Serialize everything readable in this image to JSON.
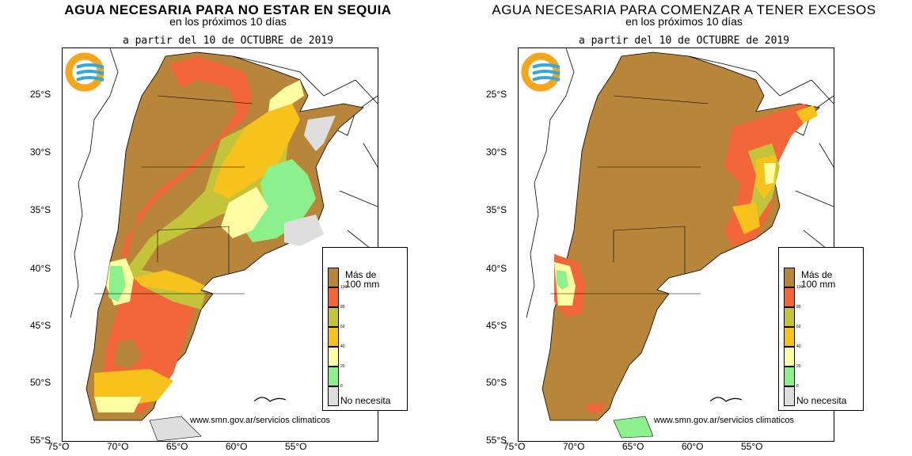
{
  "panels": [
    {
      "title": "AGUA NECESARIA PARA NO ESTAR EN SEQUIA",
      "subtitle": "en los próximos 10 días",
      "date": "a partir del 10 de OCTUBRE de 2019"
    },
    {
      "title": "AGUA NECESARIA PARA COMENZAR A TENER EXCESOS",
      "subtitle": "en los próximos 10 días",
      "date": "a partir del 10 de OCTUBRE de 2019"
    }
  ],
  "axis": {
    "lat_labels": [
      "25°S",
      "30°S",
      "35°S",
      "40°S",
      "45°S",
      "50°S",
      "55°S"
    ],
    "lon_labels": [
      "75°O",
      "70°O",
      "65°O",
      "60°O",
      "55°O"
    ]
  },
  "legend": {
    "top_label_line1": "Más de",
    "top_label_line2": "100 mm",
    "bottom_label": "No necesita",
    "ticks": [
      "100",
      "80",
      "60",
      "40",
      "20",
      "0"
    ],
    "colors": {
      "more_than_100": "#b8863b",
      "80_100": "#f2663a",
      "60_80": "#c4c43a",
      "40_60": "#f7c21b",
      "20_40": "#fdfda3",
      "0_20": "#8cf08c",
      "none": "#dedede"
    }
  },
  "url": "www.smn.gov.ar/servicios climaticos",
  "logo_colors": {
    "ring": "#f5a61c",
    "waves": "#2fa8dc"
  }
}
